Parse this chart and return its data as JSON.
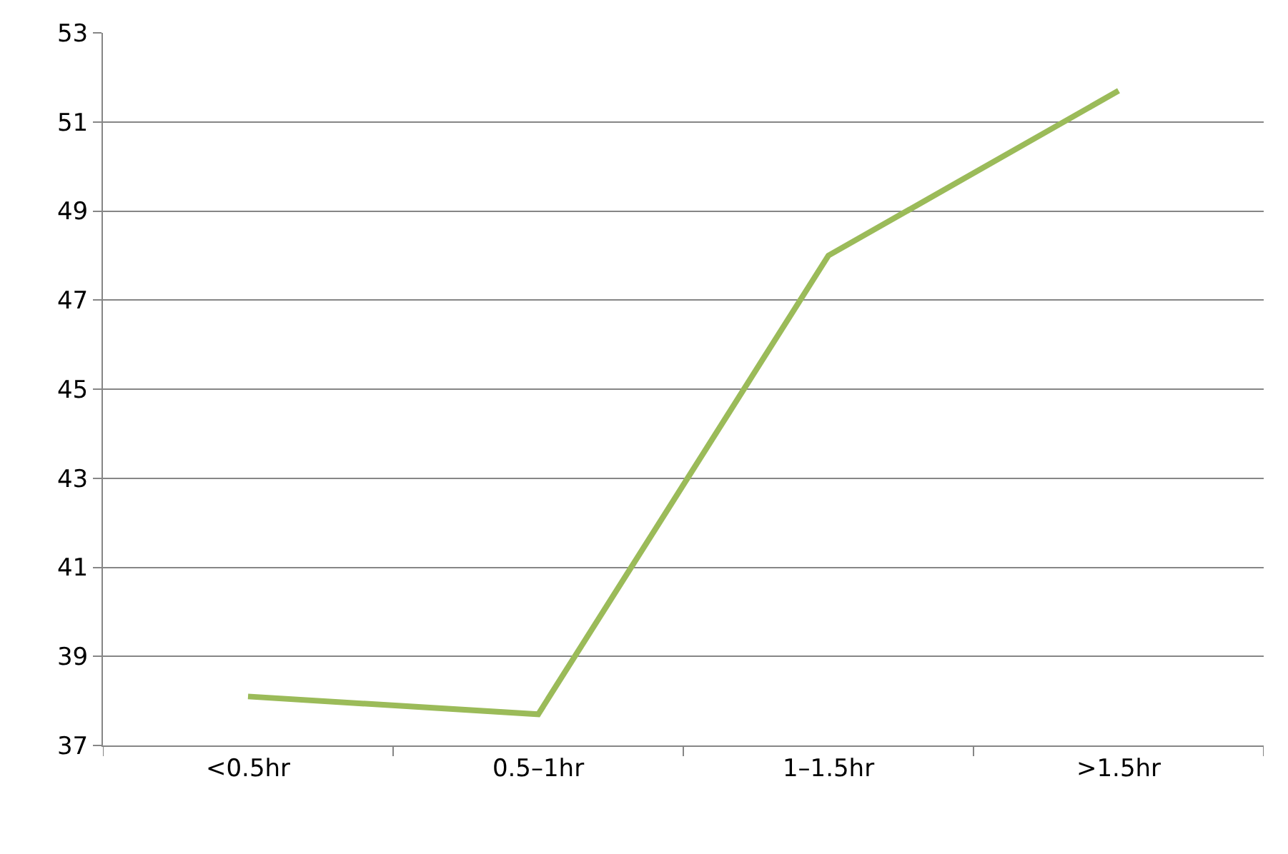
{
  "chart_data": {
    "type": "line",
    "categories": [
      "<0.5hr",
      "0.5–1hr",
      "1–1.5hr",
      ">1.5hr"
    ],
    "series": [
      {
        "color": "#9bbb59",
        "values": [
          38.1,
          37.7,
          48.0,
          51.7
        ]
      }
    ],
    "ylim": [
      37,
      53
    ],
    "yticks": [
      37,
      39,
      41,
      43,
      45,
      47,
      49,
      51,
      53
    ],
    "grid": "y",
    "legend": false,
    "marker": "none",
    "line_style": "solid"
  }
}
